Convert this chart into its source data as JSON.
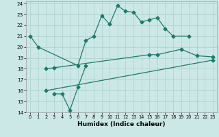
{
  "xlabel": "Humidex (Indice chaleur)",
  "bg_color": "#cce8e6",
  "line_color": "#1a7a6a",
  "grid_color": "#aacfcd",
  "xlim": [
    -0.5,
    23.5
  ],
  "ylim": [
    14,
    24.2
  ],
  "yticks": [
    14,
    15,
    16,
    17,
    18,
    19,
    20,
    21,
    22,
    23,
    24
  ],
  "xticks": [
    0,
    1,
    2,
    3,
    4,
    5,
    6,
    7,
    8,
    9,
    10,
    11,
    12,
    13,
    14,
    15,
    16,
    17,
    18,
    19,
    20,
    21,
    22,
    23
  ],
  "line1_x": [
    0,
    1,
    6,
    7,
    8,
    9,
    10,
    11,
    12,
    13,
    14,
    15,
    16,
    17,
    18,
    20
  ],
  "line1_y": [
    21,
    20,
    18.3,
    20.6,
    21.0,
    22.9,
    22.1,
    23.8,
    23.3,
    23.2,
    22.3,
    22.5,
    22.7,
    21.7,
    21.0,
    21.0
  ],
  "line2_x": [
    3,
    4,
    5,
    6,
    7
  ],
  "line2_y": [
    15.7,
    15.7,
    14.2,
    16.3,
    18.3
  ],
  "line3_x": [
    2,
    3,
    15,
    16,
    19,
    21,
    23
  ],
  "line3_y": [
    18,
    18.1,
    19.3,
    19.3,
    19.8,
    19.2,
    19.1
  ],
  "line4_x": [
    2,
    23
  ],
  "line4_y": [
    16.0,
    18.8
  ]
}
